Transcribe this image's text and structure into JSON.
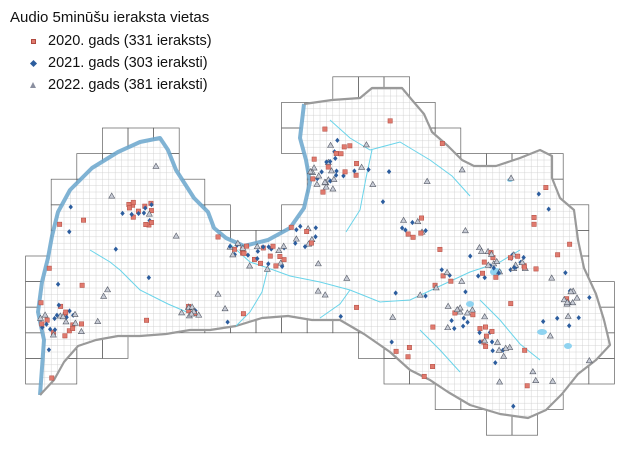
{
  "legend": {
    "title": "Audio 5minūšu ieraksta vietas",
    "items": [
      {
        "label": "2020. gads (331 ieraksts)",
        "symbol": "square",
        "color": "#e07a6e"
      },
      {
        "label": "2021. gads (303 ieraksti)",
        "symbol": "diamond",
        "color": "#2c5d9e"
      },
      {
        "label": "2022. gads (381 ieraksti)",
        "symbol": "triangle",
        "color": "#8a8fa0"
      }
    ]
  },
  "map": {
    "region": "Latvia",
    "colors": {
      "border": "#9a9a9a",
      "coast": "#5aa0c8",
      "rivers": "#5ad0e8",
      "lakes": "#8fd3f0",
      "grid_major": "#606060",
      "grid_minor": "#cccccc",
      "sea": "#ffffff"
    }
  }
}
